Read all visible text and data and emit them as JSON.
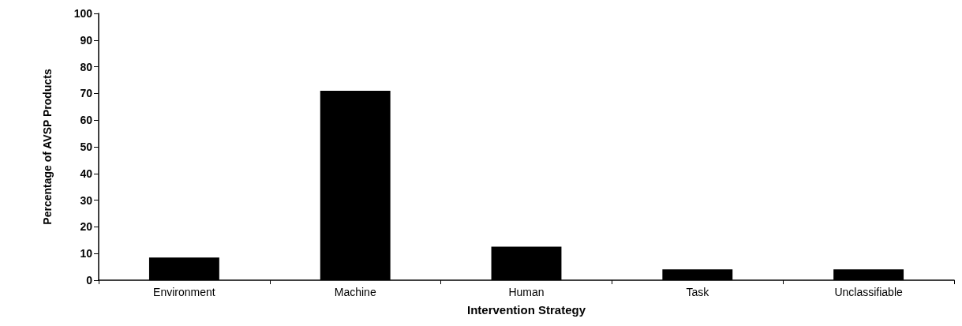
{
  "chart_data": {
    "type": "bar",
    "xlabel": "Intervention Strategy",
    "ylabel": "Percentage of AVSP Products",
    "categories": [
      "Environment",
      "Machine",
      "Human",
      "Task",
      "Unclassifiable"
    ],
    "values": [
      8.5,
      71,
      12.6,
      4.1,
      4.1
    ],
    "color": "#000000",
    "ylim": [
      0,
      100
    ],
    "yticks": [
      0,
      10,
      20,
      30,
      40,
      50,
      60,
      70,
      80,
      90,
      100
    ],
    "grid": false
  }
}
